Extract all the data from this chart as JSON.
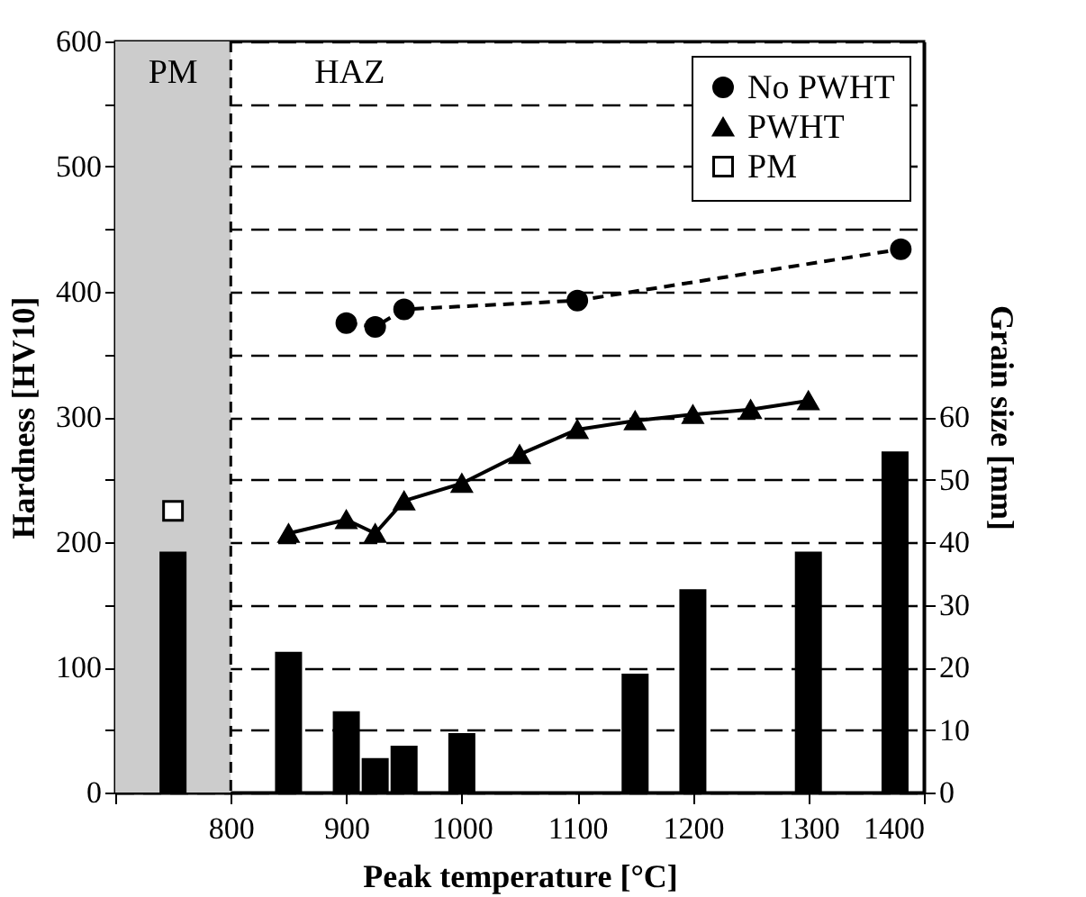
{
  "chart_data": {
    "type": "line",
    "xlabel": "Peak temperature [°C]",
    "ylabel": "Hardness [HV10]",
    "y2label": "Grain size [mm]",
    "xlim": [
      700,
      1400
    ],
    "xticks": [
      {
        "value": 700,
        "label": null
      },
      800,
      900,
      1000,
      1100,
      1200,
      1300,
      1400
    ],
    "ylim": [
      0,
      600
    ],
    "yticks": [
      0,
      {
        "value": 50,
        "label": null
      },
      100,
      {
        "value": 150,
        "label": null
      },
      200,
      {
        "value": 250,
        "label": null
      },
      300,
      {
        "value": 350,
        "label": null
      },
      400,
      {
        "value": 450,
        "label": null
      },
      500,
      {
        "value": 550,
        "label": null
      },
      600
    ],
    "y2lim": [
      0,
      120
    ],
    "y2ticks": [
      0,
      10,
      20,
      30,
      40,
      50,
      60
    ],
    "grid": "y",
    "legend": "top right",
    "series": [
      {
        "type": "bar",
        "axis": "y2",
        "color": "#000000",
        "x": [
          750,
          850,
          900,
          925,
          950,
          1000,
          1150,
          1200,
          1300,
          1375
        ],
        "values": [
          38.5,
          22.5,
          13,
          5.5,
          7.5,
          9.5,
          19,
          32.5,
          38.5,
          54.5
        ]
      },
      {
        "name": "No PWHT",
        "color": "#000000",
        "marker": "circle",
        "line_style": "dashed",
        "x": [
          900,
          925,
          950,
          1100,
          1380
        ],
        "values": [
          375,
          372,
          386,
          393,
          434
        ]
      },
      {
        "name": "PWHT",
        "color": "#000000",
        "marker": "triangle",
        "line_style": "solid",
        "x": [
          850,
          900,
          925,
          950,
          1000,
          1050,
          1100,
          1150,
          1200,
          1250,
          1300
        ],
        "values": [
          207,
          218,
          207,
          233,
          247,
          270,
          290,
          297,
          302,
          306,
          313
        ]
      },
      {
        "name": "PM",
        "type": "scatter",
        "color": "#000000",
        "marker": "square",
        "x": [
          750
        ],
        "values": [
          225
        ]
      }
    ],
    "bands": [
      {
        "axis": "x",
        "from": 700,
        "to": 800,
        "label": "PM",
        "color": "#cccccc"
      }
    ],
    "ref_lines": [
      {
        "axis": "x",
        "value": 800,
        "line_style": "dashed",
        "color": "#000000"
      }
    ],
    "annotations": [
      "HAZ"
    ]
  }
}
